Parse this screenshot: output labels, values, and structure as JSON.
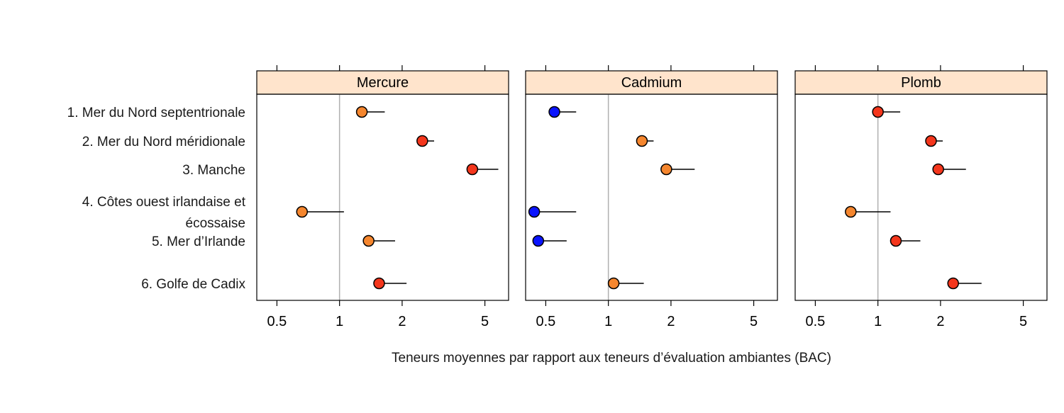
{
  "chart_data": {
    "type": "dot-whisker",
    "xscale": "log",
    "xlabel": "Teneurs moyennes par rapport aux teneurs d’évaluation ambiantes (BAC)",
    "xlim": [
      0.4,
      6.5
    ],
    "xticks": [
      0.5,
      1,
      2,
      5
    ],
    "xtick_labels": [
      "0.5",
      "1",
      "2",
      "5"
    ],
    "reference_line": 1,
    "categories": [
      [
        "1. Mer du Nord septentrionale"
      ],
      [
        "2. Mer du Nord méridionale"
      ],
      [
        "3. Manche"
      ],
      [
        "4. Côtes ouest irlandaise et",
        "écossaise"
      ],
      [
        "5. Mer d’Irlande"
      ],
      [
        "6. Golfe de Cadix"
      ]
    ],
    "colors": {
      "blue": "#0a14ff",
      "orange": "#f5862e",
      "red": "#f4361c",
      "strip": "#ffe4cc",
      "refline": "#b0b0b0"
    },
    "panels": [
      {
        "name": "Mercure",
        "points": [
          {
            "value": 1.28,
            "upper": 1.65,
            "color": "orange"
          },
          {
            "value": 2.5,
            "upper": 2.85,
            "color": "red"
          },
          {
            "value": 4.35,
            "upper": 5.8,
            "color": "red"
          },
          {
            "value": 0.66,
            "upper": 1.05,
            "color": "orange"
          },
          {
            "value": 1.38,
            "upper": 1.85,
            "color": "orange"
          },
          {
            "value": 1.55,
            "upper": 2.1,
            "color": "red"
          }
        ]
      },
      {
        "name": "Cadmium",
        "points": [
          {
            "value": 0.55,
            "upper": 0.7,
            "color": "blue"
          },
          {
            "value": 1.45,
            "upper": 1.65,
            "color": "orange"
          },
          {
            "value": 1.9,
            "upper": 2.6,
            "color": "orange"
          },
          {
            "value": 0.44,
            "upper": 0.7,
            "color": "blue"
          },
          {
            "value": 0.46,
            "upper": 0.63,
            "color": "blue"
          },
          {
            "value": 1.06,
            "upper": 1.48,
            "color": "orange"
          }
        ]
      },
      {
        "name": "Plomb",
        "points": [
          {
            "value": 1.0,
            "upper": 1.28,
            "color": "red"
          },
          {
            "value": 1.8,
            "upper": 2.05,
            "color": "red"
          },
          {
            "value": 1.95,
            "upper": 2.65,
            "color": "red"
          },
          {
            "value": 0.74,
            "upper": 1.15,
            "color": "orange"
          },
          {
            "value": 1.22,
            "upper": 1.6,
            "color": "red"
          },
          {
            "value": 2.3,
            "upper": 3.15,
            "color": "red"
          }
        ]
      }
    ]
  }
}
